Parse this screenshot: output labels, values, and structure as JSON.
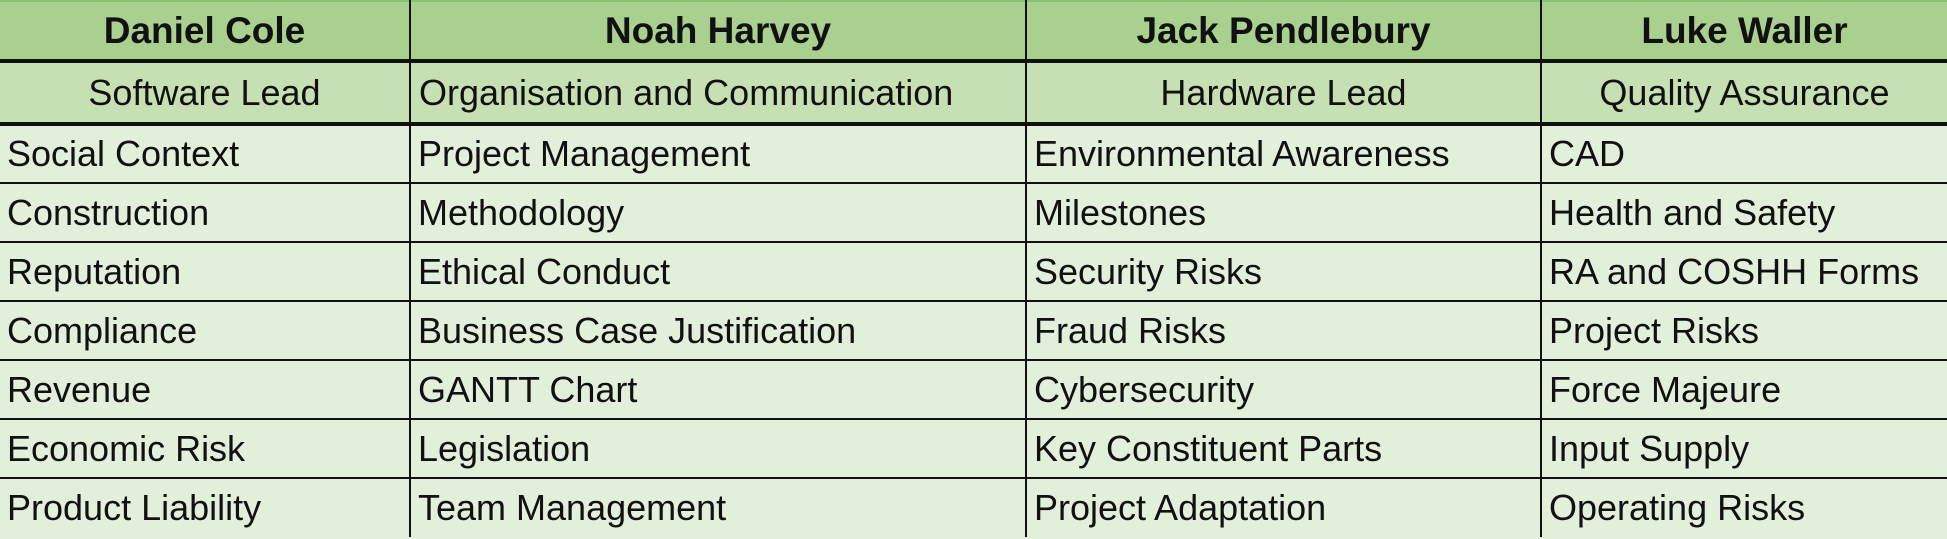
{
  "table": {
    "people": [
      {
        "name": "Daniel Cole",
        "role": "Software Lead"
      },
      {
        "name": "Noah Harvey",
        "role": "Organisation and Communication"
      },
      {
        "name": "Jack Pendlebury",
        "role": "Hardware Lead"
      },
      {
        "name": "Luke Waller",
        "role": "Quality Assurance"
      }
    ],
    "rows": [
      [
        "Social Context",
        "Project Management",
        "Environmental Awareness",
        "CAD"
      ],
      [
        "Construction",
        "Methodology",
        "Milestones",
        "Health and Safety"
      ],
      [
        "Reputation",
        "Ethical Conduct",
        "Security Risks",
        "RA and COSHH Forms"
      ],
      [
        "Compliance",
        "Business Case Justification",
        "Fraud Risks",
        "Project Risks"
      ],
      [
        "Revenue",
        "GANTT Chart",
        "Cybersecurity",
        "Force Majeure"
      ],
      [
        "Economic Risk",
        "Legislation",
        "Key Constituent Parts",
        "Input Supply"
      ],
      [
        "Product Liability",
        "Team Management",
        "Project Adaptation",
        "Operating Risks"
      ]
    ]
  },
  "colors": {
    "name_header_bg": "#a9d08e",
    "role_header_bg": "#c6e0b4",
    "body_bg": "#e2efda",
    "grid_lines": "#111111"
  }
}
